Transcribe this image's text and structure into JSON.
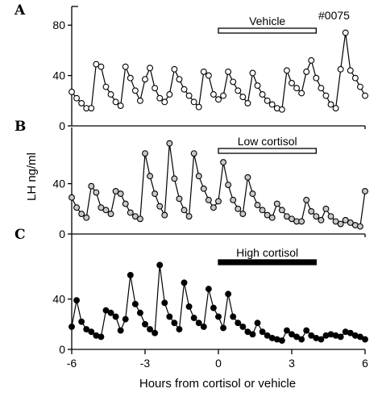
{
  "figure": {
    "id_label": "#0075",
    "ylabel": "LH ng/ml",
    "xlabel": "Hours from cortisol or vehicle"
  },
  "chart_data": [
    {
      "type": "line",
      "panel": "A",
      "bar_label": "Vehicle",
      "bar_range": [
        0,
        4
      ],
      "bar_style": "hollow",
      "marker": "hollow",
      "xlim": [
        -6,
        6
      ],
      "ylim": [
        0,
        80
      ],
      "yticks": [
        0,
        40,
        80
      ],
      "ytick_labels": [
        "0",
        "40",
        "80"
      ],
      "x": [
        -6,
        -5.8,
        -5.6,
        -5.4,
        -5.2,
        -5,
        -4.8,
        -4.6,
        -4.4,
        -4.2,
        -4,
        -3.8,
        -3.6,
        -3.4,
        -3.2,
        -3,
        -2.8,
        -2.6,
        -2.4,
        -2.2,
        -2,
        -1.8,
        -1.6,
        -1.4,
        -1.2,
        -1,
        -0.8,
        -0.6,
        -0.4,
        -0.2,
        0,
        0.2,
        0.4,
        0.6,
        0.8,
        1,
        1.2,
        1.4,
        1.6,
        1.8,
        2,
        2.2,
        2.4,
        2.6,
        2.8,
        3,
        3.2,
        3.4,
        3.6,
        3.8,
        4,
        4.2,
        4.4,
        4.6,
        4.8,
        5,
        5.2,
        5.4,
        5.6,
        5.8,
        6
      ],
      "values": [
        27,
        22,
        18,
        14,
        14,
        49,
        47,
        31,
        25,
        19,
        16,
        47,
        38,
        28,
        20,
        37,
        46,
        30,
        22,
        19,
        25,
        45,
        37,
        29,
        24,
        19,
        15,
        43,
        40,
        25,
        21,
        24,
        43,
        35,
        28,
        23,
        18,
        42,
        32,
        25,
        20,
        17,
        14,
        13,
        44,
        34,
        30,
        26,
        43,
        52,
        38,
        30,
        24,
        17,
        14,
        45,
        74,
        44,
        38,
        31,
        24
      ],
      "value_labels": []
    },
    {
      "type": "line",
      "panel": "B",
      "bar_label": "Low cortisol",
      "bar_range": [
        0,
        4
      ],
      "bar_style": "hollow",
      "marker": "gray",
      "xlim": [
        -6,
        6
      ],
      "ylim": [
        0,
        80
      ],
      "yticks": [
        0,
        40
      ],
      "ytick_labels": [
        "0",
        "40"
      ],
      "x": [
        -6,
        -5.8,
        -5.6,
        -5.4,
        -5.2,
        -5,
        -4.8,
        -4.6,
        -4.4,
        -4.2,
        -4,
        -3.8,
        -3.6,
        -3.4,
        -3.2,
        -3,
        -2.8,
        -2.6,
        -2.4,
        -2.2,
        -2,
        -1.8,
        -1.6,
        -1.4,
        -1.2,
        -1,
        -0.8,
        -0.6,
        -0.4,
        -0.2,
        0,
        0.2,
        0.4,
        0.6,
        0.8,
        1,
        1.2,
        1.4,
        1.6,
        1.8,
        2,
        2.2,
        2.4,
        2.6,
        2.8,
        3,
        3.2,
        3.4,
        3.6,
        3.8,
        4,
        4.2,
        4.4,
        4.6,
        4.8,
        5,
        5.2,
        5.4,
        5.6,
        5.8,
        6
      ],
      "values": [
        29,
        21,
        16,
        13,
        38,
        33,
        21,
        19,
        16,
        34,
        32,
        24,
        17,
        14,
        12,
        64,
        46,
        32,
        22,
        15,
        72,
        44,
        28,
        19,
        14,
        64,
        46,
        36,
        27,
        21,
        26,
        57,
        39,
        27,
        20,
        16,
        45,
        32,
        23,
        19,
        15,
        13,
        24,
        19,
        14,
        12,
        10,
        10,
        27,
        18,
        14,
        11,
        20,
        14,
        10,
        8,
        11,
        9,
        7,
        6,
        34
      ],
      "value_labels": []
    },
    {
      "type": "line",
      "panel": "C",
      "bar_label": "High cortisol",
      "bar_range": [
        0,
        4
      ],
      "bar_style": "solid",
      "marker": "solid",
      "xlim": [
        -6,
        6
      ],
      "ylim": [
        0,
        80
      ],
      "yticks": [
        0,
        40
      ],
      "ytick_labels": [
        "0",
        "40"
      ],
      "xticks": [
        -6,
        -3,
        0,
        3,
        6
      ],
      "xtick_labels": [
        "-6",
        "-3",
        "0",
        "3",
        "6"
      ],
      "x": [
        -6,
        -5.8,
        -5.6,
        -5.4,
        -5.2,
        -5,
        -4.8,
        -4.6,
        -4.4,
        -4.2,
        -4,
        -3.8,
        -3.6,
        -3.4,
        -3.2,
        -3,
        -2.8,
        -2.6,
        -2.4,
        -2.2,
        -2,
        -1.8,
        -1.6,
        -1.4,
        -1.2,
        -1,
        -0.8,
        -0.6,
        -0.4,
        -0.2,
        0,
        0.2,
        0.4,
        0.6,
        0.8,
        1,
        1.2,
        1.4,
        1.6,
        1.8,
        2,
        2.2,
        2.4,
        2.6,
        2.8,
        3,
        3.2,
        3.4,
        3.6,
        3.8,
        4,
        4.2,
        4.4,
        4.6,
        4.8,
        5,
        5.2,
        5.4,
        5.6,
        5.8,
        6
      ],
      "values": [
        18,
        39,
        22,
        16,
        14,
        11,
        10,
        31,
        29,
        26,
        15,
        24,
        59,
        36,
        29,
        20,
        16,
        13,
        67,
        37,
        26,
        21,
        16,
        53,
        34,
        25,
        21,
        18,
        48,
        33,
        26,
        17,
        44,
        26,
        21,
        18,
        14,
        12,
        21,
        14,
        11,
        9,
        8,
        7,
        15,
        12,
        10,
        8,
        15,
        11,
        9,
        8,
        11,
        12,
        11,
        10,
        14,
        13,
        11,
        10,
        8
      ],
      "value_labels": []
    }
  ]
}
